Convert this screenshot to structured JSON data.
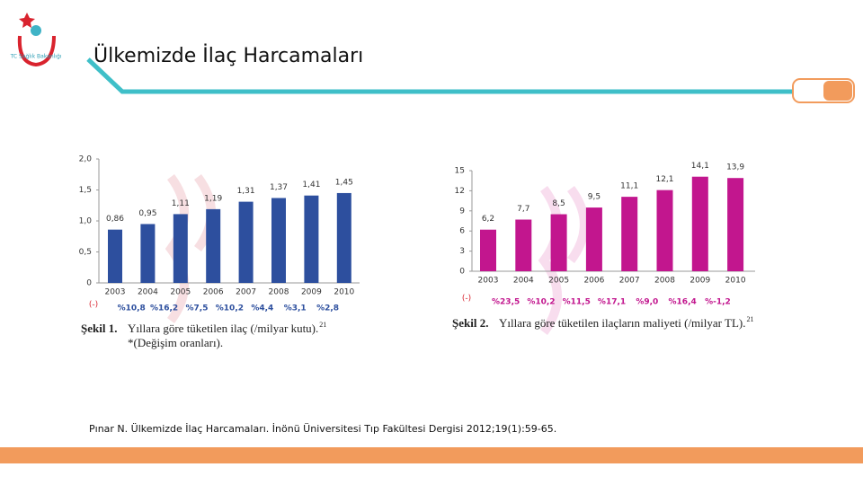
{
  "header": {
    "title": "Ülkemizde İlaç Harcamaları",
    "logo_text": "TC Sağlık Bakanlığı"
  },
  "chart_data": [
    {
      "type": "bar",
      "categories": [
        "2003",
        "2004",
        "2005",
        "2006",
        "2007",
        "2008",
        "2009",
        "2010"
      ],
      "values": [
        0.86,
        0.95,
        1.11,
        1.19,
        1.31,
        1.37,
        1.41,
        1.45
      ],
      "value_labels": [
        "0,86",
        "0,95",
        "1,11",
        "1,19",
        "1,31",
        "1,37",
        "1,41",
        "1,45"
      ],
      "color": "#2d4f9e",
      "ylim": [
        0,
        2
      ],
      "yticks": [
        0,
        {
          "value": 0.5,
          "label": "0,5"
        },
        {
          "value": 1,
          "label": "1,0"
        },
        {
          "value": 1.5,
          "label": "1,5"
        },
        {
          "value": 2,
          "label": "2,0"
        }
      ],
      "changes_label": "(-)",
      "changes": [
        "%10,8",
        "%16,2",
        "%7,5",
        "%10,2",
        "%4,4",
        "%3,1",
        "%2,8"
      ],
      "caption_number": "Şekil 1.",
      "caption_text": "Yıllara göre tüketilen ilaç (/milyar kutu).",
      "caption_ref": "21",
      "caption_note": "*(Değişim oranları)."
    },
    {
      "type": "bar",
      "categories": [
        "2003",
        "2004",
        "2005",
        "2006",
        "2007",
        "2008",
        "2009",
        "2010"
      ],
      "values": [
        6.2,
        7.7,
        8.5,
        9.5,
        11.1,
        12.1,
        14.1,
        13.9
      ],
      "value_labels": [
        "6,2",
        "7,7",
        "8,5",
        "9,5",
        "11,1",
        "12,1",
        "14,1",
        "13,9"
      ],
      "color": "#c2168e",
      "ylim": [
        0,
        15
      ],
      "yticks": [
        0,
        3,
        6,
        9,
        12,
        15
      ],
      "changes_label": "(-)",
      "changes": [
        "%23,5",
        "%10,2",
        "%11,5",
        "%17,1",
        "%9,0",
        "%16,4",
        "%-1,2"
      ],
      "caption_number": "Şekil 2.",
      "caption_text": "Yıllara göre tüketilen ilaçların maliyeti (/milyar TL).",
      "caption_ref": "21"
    }
  ],
  "citation": "Pınar N. Ülkemizde İlaç Harcamaları. İnönü Üniversitesi Tıp Fakültesi Dergisi 2012;19(1):59-65."
}
